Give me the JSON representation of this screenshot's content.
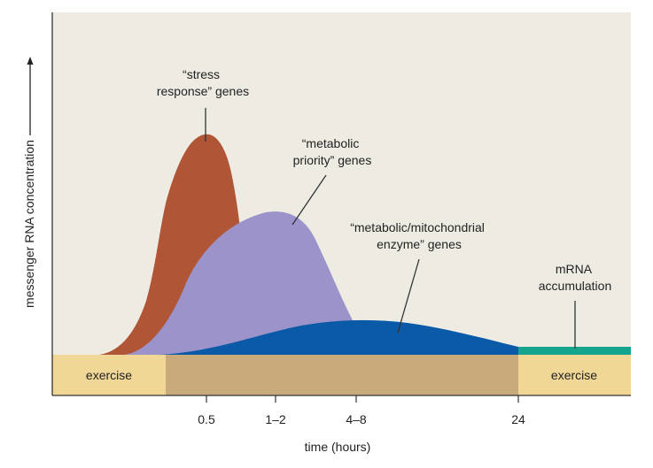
{
  "chart_data": {
    "type": "area",
    "title": "",
    "xlabel": "time (hours)",
    "ylabel": "messenger RNA concentration",
    "x_ticks": [
      "0.5",
      "1–2",
      "4–8",
      "24"
    ],
    "y_ticks": [],
    "series": [
      {
        "name": "stress response genes",
        "label_lines": [
          "“stress",
          "response” genes"
        ],
        "color": "#b05536",
        "peak_tick": "0.5",
        "relative_peak": 0.67
      },
      {
        "name": "metabolic priority genes",
        "label_lines": [
          "“metabolic",
          "priority” genes"
        ],
        "color": "#9b93c9",
        "peak_tick": "1–2",
        "relative_peak": 0.43
      },
      {
        "name": "metabolic/mitochondrial enzyme genes",
        "label_lines": [
          "“metabolic/mitochondrial",
          "enzyme” genes"
        ],
        "color": "#0b5aa8",
        "peak_tick": "4–8",
        "relative_peak": 0.11
      },
      {
        "name": "mRNA accumulation",
        "label_lines": [
          "mRNA",
          "accumulation"
        ],
        "color": "#14a58c",
        "peak_tick": "24",
        "relative_peak": 0.03
      }
    ],
    "phases": [
      {
        "label": "exercise",
        "color": "#f1d796"
      },
      {
        "label": "",
        "color": "#c8aa7b"
      },
      {
        "label": "exercise",
        "color": "#f1d796"
      }
    ]
  },
  "colors": {
    "plot_background": "#eeebe3",
    "axis": "#333333",
    "text": "#222222"
  }
}
